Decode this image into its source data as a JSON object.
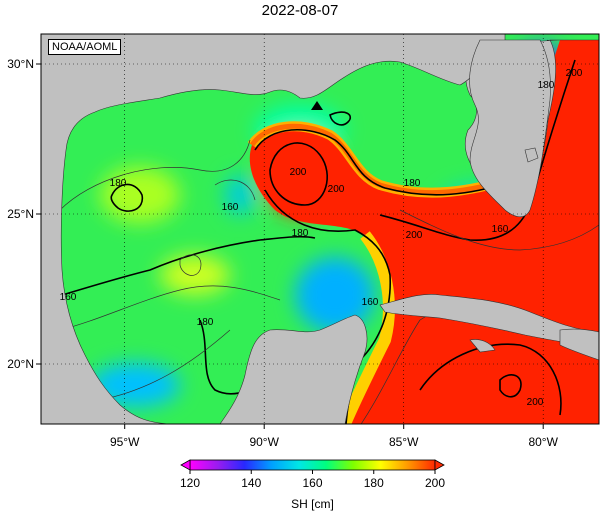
{
  "title": "2022-08-07",
  "credit": "NOAA/AOML",
  "marker": {
    "name": "station",
    "shape": "triangle",
    "color": "#000000"
  },
  "axes": {
    "x": {
      "ticks": [
        {
          "v": -95,
          "label": "95°W"
        },
        {
          "v": -90,
          "label": "90°W"
        },
        {
          "v": -85,
          "label": "85°W"
        },
        {
          "v": -80,
          "label": "80°W"
        }
      ],
      "range": [
        -98,
        -78
      ]
    },
    "y": {
      "ticks": [
        {
          "v": 30,
          "label": "30°N"
        },
        {
          "v": 25,
          "label": "25°N"
        },
        {
          "v": 20,
          "label": "20°N"
        }
      ],
      "range": [
        18,
        31
      ]
    },
    "grid": "dotted"
  },
  "colorbar": {
    "label": "SH [cm]",
    "min": 120,
    "max": 200,
    "ticks": [
      "120",
      "140",
      "160",
      "180",
      "200"
    ],
    "colors": [
      "#ff00ff",
      "#9b1cf0",
      "#2828ff",
      "#00a0ff",
      "#00e6e6",
      "#00ff7f",
      "#7fff00",
      "#ffff00",
      "#ff9900",
      "#ff2a00"
    ]
  },
  "contour_labels": [
    {
      "text": "180"
    },
    {
      "text": "160"
    },
    {
      "text": "180"
    },
    {
      "text": "200"
    },
    {
      "text": "200"
    },
    {
      "text": "180"
    },
    {
      "text": "180"
    },
    {
      "text": "200"
    },
    {
      "text": "160"
    },
    {
      "text": "160"
    },
    {
      "text": "160"
    },
    {
      "text": "180"
    },
    {
      "text": "200"
    },
    {
      "text": "200"
    }
  ],
  "colors": {
    "land": "#c0c0c0",
    "ocean_low": "#00bfff",
    "ocean_mid": "#00ff66",
    "ocean_high": "#ff2a00"
  }
}
